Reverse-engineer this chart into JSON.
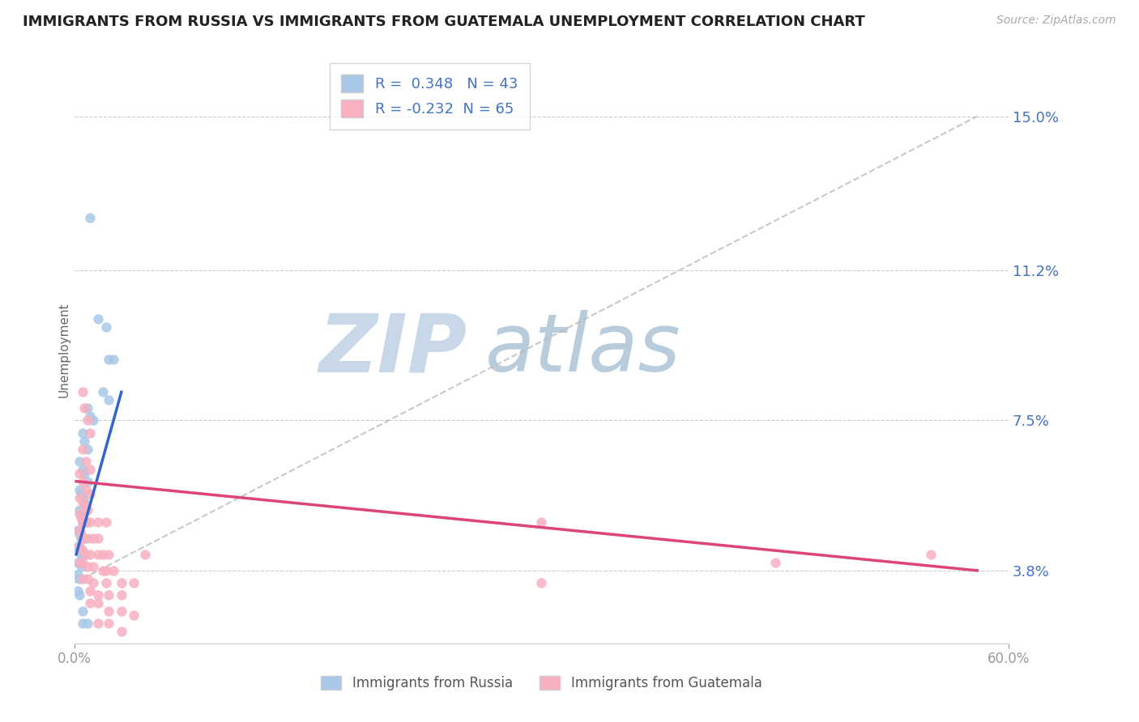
{
  "title": "IMMIGRANTS FROM RUSSIA VS IMMIGRANTS FROM GUATEMALA UNEMPLOYMENT CORRELATION CHART",
  "source_text": "Source: ZipAtlas.com",
  "ylabel": "Unemployment",
  "xlim": [
    0.0,
    0.6
  ],
  "ylim": [
    0.02,
    0.165
  ],
  "yticks": [
    0.038,
    0.075,
    0.112,
    0.15
  ],
  "ytick_labels": [
    "3.8%",
    "7.5%",
    "11.2%",
    "15.0%"
  ],
  "xticks": [
    0.0,
    0.6
  ],
  "xtick_labels": [
    "0.0%",
    "60.0%"
  ],
  "russia_color": "#a8c8e8",
  "guatemala_color": "#f8b0c0",
  "russia_line_color": "#3366cc",
  "guatemala_line_color": "#dd4477",
  "diagonal_color": "#bbbbbb",
  "label_color": "#4472c4",
  "tick_label_color": "#555555",
  "R_russia": 0.348,
  "N_russia": 43,
  "R_guatemala": -0.232,
  "N_guatemala": 65,
  "russia_scatter": [
    [
      0.01,
      0.125
    ],
    [
      0.015,
      0.1
    ],
    [
      0.02,
      0.098
    ],
    [
      0.022,
      0.09
    ],
    [
      0.025,
      0.09
    ],
    [
      0.018,
      0.082
    ],
    [
      0.022,
      0.08
    ],
    [
      0.008,
      0.078
    ],
    [
      0.01,
      0.076
    ],
    [
      0.012,
      0.075
    ],
    [
      0.005,
      0.072
    ],
    [
      0.006,
      0.07
    ],
    [
      0.008,
      0.068
    ],
    [
      0.003,
      0.065
    ],
    [
      0.005,
      0.063
    ],
    [
      0.006,
      0.062
    ],
    [
      0.008,
      0.06
    ],
    [
      0.003,
      0.058
    ],
    [
      0.004,
      0.057
    ],
    [
      0.005,
      0.056
    ],
    [
      0.006,
      0.055
    ],
    [
      0.003,
      0.053
    ],
    [
      0.004,
      0.052
    ],
    [
      0.005,
      0.05
    ],
    [
      0.007,
      0.05
    ],
    [
      0.002,
      0.048
    ],
    [
      0.003,
      0.047
    ],
    [
      0.004,
      0.046
    ],
    [
      0.006,
      0.046
    ],
    [
      0.002,
      0.044
    ],
    [
      0.003,
      0.043
    ],
    [
      0.004,
      0.042
    ],
    [
      0.005,
      0.042
    ],
    [
      0.002,
      0.04
    ],
    [
      0.003,
      0.04
    ],
    [
      0.004,
      0.039
    ],
    [
      0.002,
      0.037
    ],
    [
      0.003,
      0.036
    ],
    [
      0.002,
      0.033
    ],
    [
      0.003,
      0.032
    ],
    [
      0.005,
      0.028
    ],
    [
      0.005,
      0.025
    ],
    [
      0.008,
      0.025
    ]
  ],
  "guatemala_scatter": [
    [
      0.005,
      0.082
    ],
    [
      0.006,
      0.078
    ],
    [
      0.008,
      0.075
    ],
    [
      0.01,
      0.072
    ],
    [
      0.005,
      0.068
    ],
    [
      0.007,
      0.065
    ],
    [
      0.01,
      0.063
    ],
    [
      0.003,
      0.062
    ],
    [
      0.005,
      0.06
    ],
    [
      0.007,
      0.058
    ],
    [
      0.01,
      0.057
    ],
    [
      0.003,
      0.056
    ],
    [
      0.005,
      0.055
    ],
    [
      0.006,
      0.054
    ],
    [
      0.008,
      0.053
    ],
    [
      0.003,
      0.052
    ],
    [
      0.004,
      0.051
    ],
    [
      0.005,
      0.05
    ],
    [
      0.007,
      0.05
    ],
    [
      0.01,
      0.05
    ],
    [
      0.015,
      0.05
    ],
    [
      0.02,
      0.05
    ],
    [
      0.003,
      0.048
    ],
    [
      0.004,
      0.047
    ],
    [
      0.006,
      0.046
    ],
    [
      0.008,
      0.046
    ],
    [
      0.012,
      0.046
    ],
    [
      0.015,
      0.046
    ],
    [
      0.003,
      0.044
    ],
    [
      0.005,
      0.043
    ],
    [
      0.007,
      0.042
    ],
    [
      0.01,
      0.042
    ],
    [
      0.015,
      0.042
    ],
    [
      0.018,
      0.042
    ],
    [
      0.022,
      0.042
    ],
    [
      0.003,
      0.04
    ],
    [
      0.005,
      0.04
    ],
    [
      0.008,
      0.039
    ],
    [
      0.012,
      0.039
    ],
    [
      0.018,
      0.038
    ],
    [
      0.025,
      0.038
    ],
    [
      0.005,
      0.036
    ],
    [
      0.008,
      0.036
    ],
    [
      0.012,
      0.035
    ],
    [
      0.02,
      0.035
    ],
    [
      0.03,
      0.035
    ],
    [
      0.038,
      0.035
    ],
    [
      0.01,
      0.033
    ],
    [
      0.015,
      0.032
    ],
    [
      0.022,
      0.032
    ],
    [
      0.03,
      0.032
    ],
    [
      0.01,
      0.03
    ],
    [
      0.015,
      0.03
    ],
    [
      0.022,
      0.028
    ],
    [
      0.03,
      0.028
    ],
    [
      0.038,
      0.027
    ],
    [
      0.015,
      0.025
    ],
    [
      0.022,
      0.025
    ],
    [
      0.03,
      0.023
    ],
    [
      0.02,
      0.038
    ],
    [
      0.045,
      0.042
    ],
    [
      0.3,
      0.05
    ],
    [
      0.45,
      0.04
    ],
    [
      0.3,
      0.035
    ],
    [
      0.55,
      0.042
    ]
  ],
  "russia_line": [
    [
      0.001,
      0.042
    ],
    [
      0.03,
      0.082
    ]
  ],
  "guatemala_line": [
    [
      0.001,
      0.06
    ],
    [
      0.58,
      0.038
    ]
  ],
  "diagonal_line": [
    [
      0.0,
      0.035
    ],
    [
      0.58,
      0.15
    ]
  ],
  "watermark_zip": "ZIP",
  "watermark_atlas": "atlas",
  "watermark_zip_color": "#c8d8e8",
  "watermark_atlas_color": "#b8ccdc",
  "watermark_fontsize": 72
}
